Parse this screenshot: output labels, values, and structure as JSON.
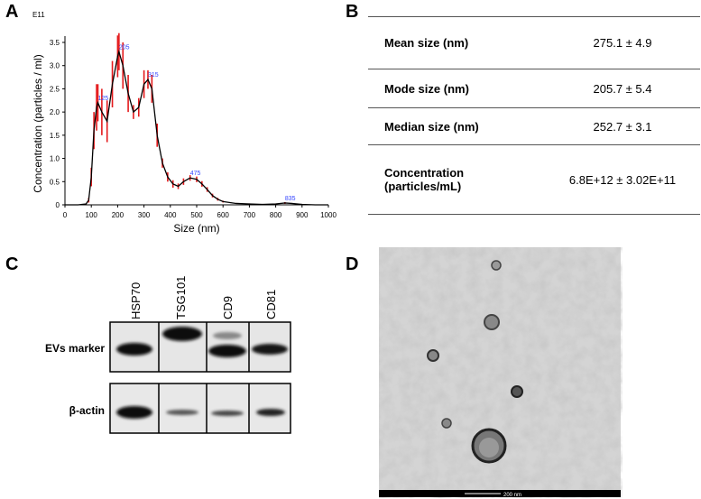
{
  "panel_labels": [
    "A",
    "B",
    "C",
    "D"
  ],
  "chart_data": {
    "type": "line",
    "multiplier": "E11",
    "xlabel": "Size (nm)",
    "ylabel": "Concentration (particles / ml)",
    "x": [
      0,
      50,
      80,
      90,
      100,
      110,
      120,
      125,
      140,
      160,
      180,
      200,
      205,
      220,
      240,
      260,
      280,
      300,
      315,
      330,
      350,
      370,
      390,
      410,
      430,
      450,
      475,
      500,
      520,
      540,
      560,
      580,
      600,
      650,
      700,
      750,
      800,
      835,
      860,
      900,
      950,
      1000
    ],
    "series": [
      {
        "color": "#000000",
        "error_color": "#e41a1c",
        "values": [
          0,
          0,
          0.02,
          0.1,
          0.6,
          1.6,
          2.1,
          2.2,
          2.0,
          1.8,
          2.6,
          3.2,
          3.3,
          3.0,
          2.4,
          2.0,
          2.1,
          2.6,
          2.7,
          2.5,
          1.5,
          0.9,
          0.6,
          0.45,
          0.4,
          0.5,
          0.58,
          0.55,
          0.45,
          0.33,
          0.2,
          0.12,
          0.07,
          0.03,
          0.02,
          0.01,
          0.02,
          0.04,
          0.03,
          0.01,
          0,
          0
        ],
        "errors": [
          0,
          0,
          0.01,
          0.05,
          0.2,
          0.4,
          0.5,
          0.4,
          0.5,
          0.45,
          0.5,
          0.45,
          0.4,
          0.5,
          0.4,
          0.15,
          0.2,
          0.3,
          0.2,
          0.3,
          0.25,
          0.1,
          0.1,
          0.08,
          0.06,
          0.07,
          0.06,
          0.06,
          0.06,
          0.05,
          0.04,
          0.03,
          0.02,
          0.01,
          0.01,
          0.01,
          0.01,
          0.02,
          0.01,
          0.01,
          0,
          0
        ]
      }
    ],
    "peaks": [
      125,
      205,
      315,
      475,
      835
    ],
    "peak_color": "#3344ff",
    "xlim": [
      0,
      1000
    ],
    "xticks": [
      0,
      100,
      200,
      300,
      400,
      500,
      600,
      700,
      800,
      900,
      1000
    ],
    "ylim": [
      0,
      3.5
    ],
    "yticks": [
      0,
      0.5,
      {
        "value": 1,
        "label": "1.0"
      },
      1.5,
      {
        "value": 2,
        "label": "2.0"
      },
      2.5,
      {
        "value": 3,
        "label": "3.0"
      },
      3.5
    ]
  },
  "table": {
    "rows": [
      [
        "Mean size (nm)",
        "275.1 ± 4.9"
      ],
      [
        "Mode size (nm)",
        "205.7 ± 5.4"
      ],
      [
        "Median size (nm)",
        "252.7 ± 3.1"
      ],
      [
        "Concentration (particles/mL)",
        "6.8E+12 ± 3.02E+11"
      ]
    ]
  },
  "blot": {
    "columns": [
      "HSP70",
      "TSG101",
      "CD9",
      "CD81"
    ],
    "rows": [
      "EVs marker",
      "β-actin"
    ]
  },
  "tem": {
    "scale_bar": "200 nm"
  }
}
